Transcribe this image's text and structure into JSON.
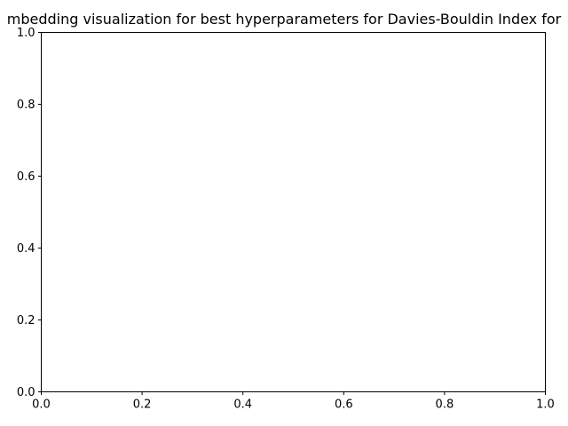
{
  "chart_data": {
    "type": "scatter",
    "title": "mbedding visualization for best hyperparameters for Davies-Bouldin Index for",
    "xlabel": "",
    "ylabel": "",
    "xlim": [
      0.0,
      1.0
    ],
    "ylim": [
      0.0,
      1.0
    ],
    "x_ticks": [
      0.0,
      0.2,
      0.4,
      0.6,
      0.8,
      1.0
    ],
    "y_ticks": [
      0.0,
      0.2,
      0.4,
      0.6,
      0.8,
      1.0
    ],
    "x_tick_labels": [
      "0.0",
      "0.2",
      "0.4",
      "0.6",
      "0.8",
      "1.0"
    ],
    "y_tick_labels": [
      "0.0",
      "0.2",
      "0.4",
      "0.6",
      "0.8",
      "1.0"
    ],
    "series": [],
    "grid": false,
    "legend": "none"
  }
}
